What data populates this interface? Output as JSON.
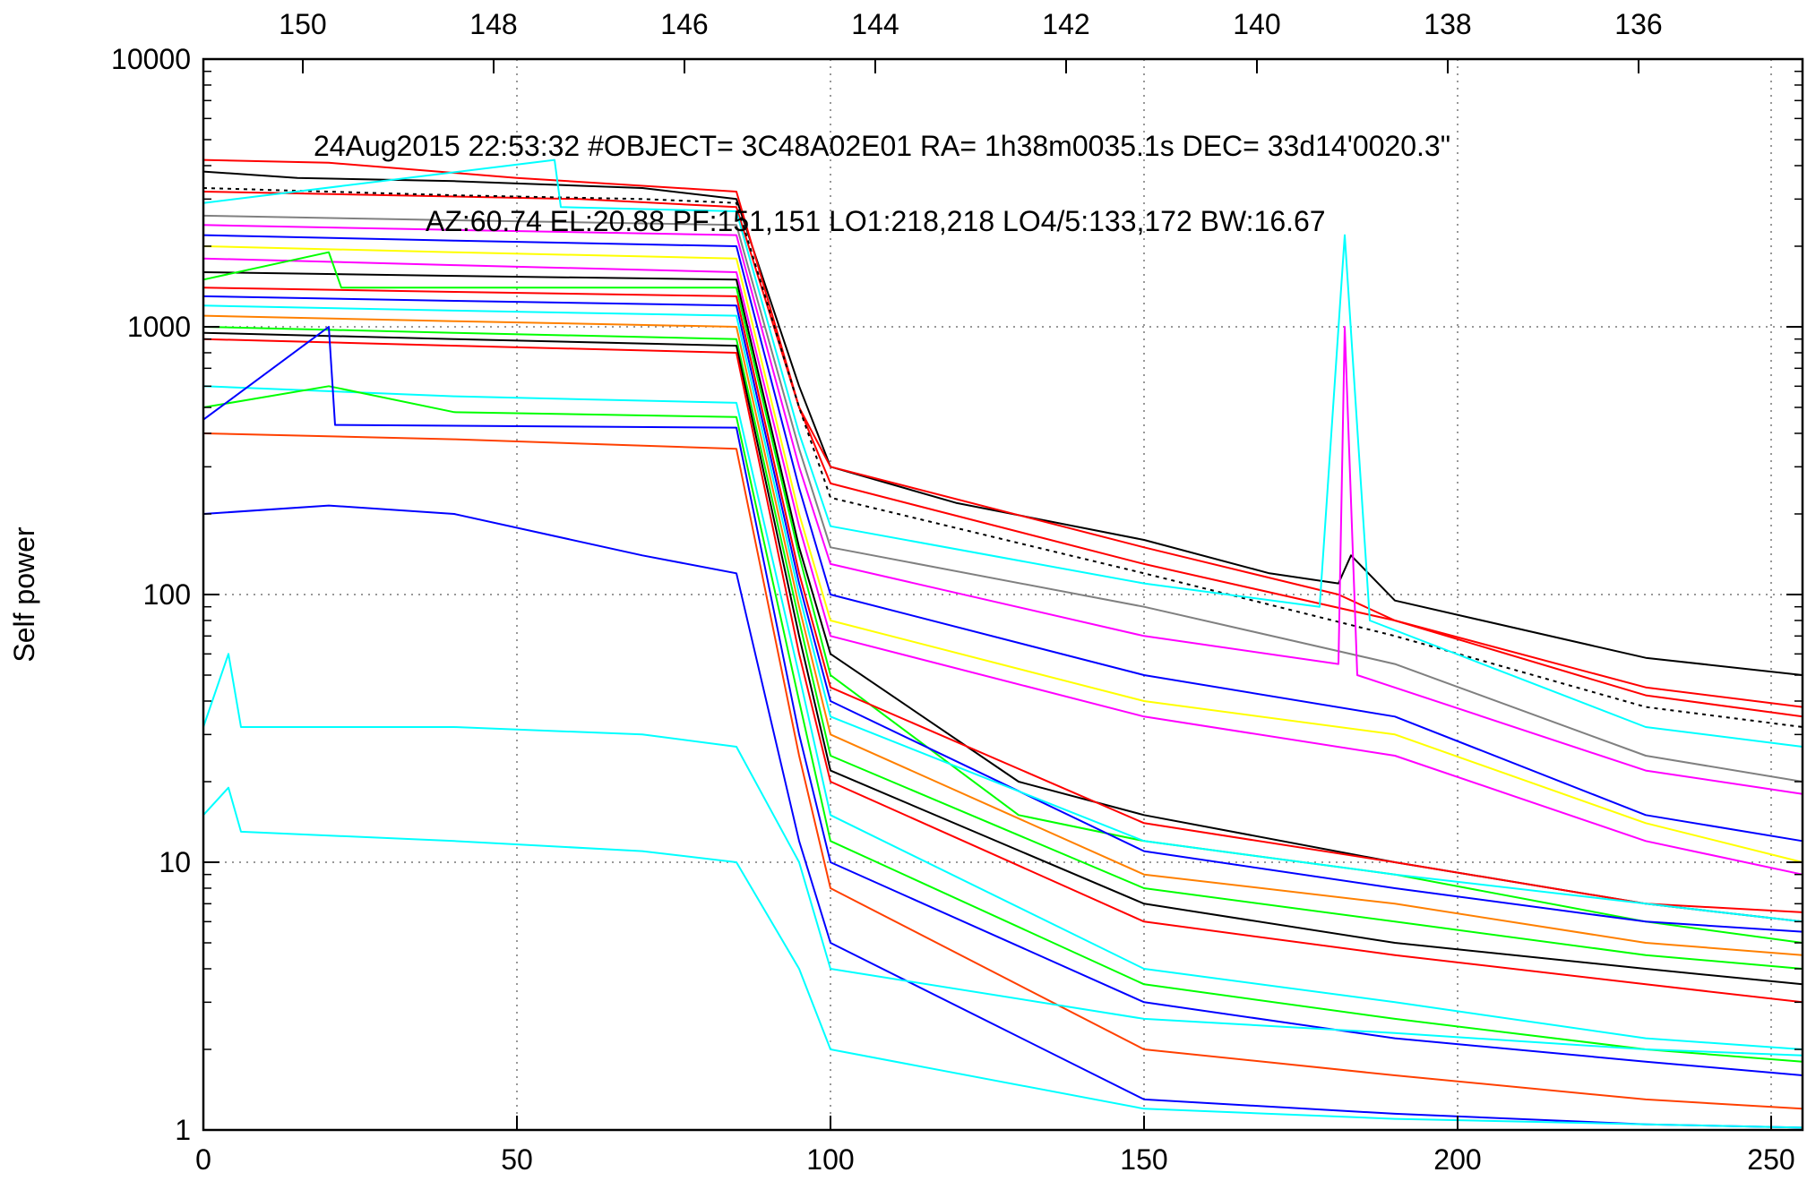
{
  "chart_data": {
    "type": "line",
    "header_line1": "24Aug2015 22:53:32  #OBJECT= 3C48A02E01 RA=   1h38m0035.1s DEC=  33d14'0020.3\"",
    "header_line2": "AZ:60.74   EL:20.88   PF:151,151     LO1:218,218     LO4/5:133,172     BW:16.67",
    "ylabel": "Self power",
    "xlabel": "",
    "xlim": [
      0,
      255
    ],
    "ylim": [
      1,
      10000
    ],
    "yscale": "log",
    "grid": true,
    "legend": "none",
    "x_ticks": [
      "0",
      "50",
      "100",
      "150",
      "200",
      "250"
    ],
    "y_ticks": [
      "1",
      "10",
      "100",
      "1000",
      "10000"
    ],
    "top_ticks": [
      "150",
      "148",
      "146",
      "144",
      "142",
      "140",
      "138",
      "136"
    ],
    "series": [
      {
        "color": "#000000",
        "points": [
          [
            0,
            3800
          ],
          [
            15,
            3600
          ],
          [
            40,
            3500
          ],
          [
            70,
            3300
          ],
          [
            85,
            3000
          ],
          [
            95,
            600
          ],
          [
            100,
            300
          ],
          [
            120,
            220
          ],
          [
            150,
            160
          ],
          [
            170,
            120
          ],
          [
            181,
            110
          ],
          [
            183,
            140
          ],
          [
            190,
            95
          ],
          [
            230,
            58
          ],
          [
            255,
            50
          ]
        ]
      },
      {
        "color": "#ff0000",
        "points": [
          [
            0,
            4200
          ],
          [
            20,
            4100
          ],
          [
            50,
            3600
          ],
          [
            85,
            3200
          ],
          [
            95,
            500
          ],
          [
            100,
            300
          ],
          [
            150,
            150
          ],
          [
            181,
            100
          ],
          [
            190,
            80
          ],
          [
            230,
            45
          ],
          [
            255,
            38
          ]
        ]
      },
      {
        "color": "#ff0000",
        "points": [
          [
            0,
            3200
          ],
          [
            30,
            3100
          ],
          [
            60,
            3000
          ],
          [
            85,
            2800
          ],
          [
            95,
            500
          ],
          [
            100,
            260
          ],
          [
            150,
            130
          ],
          [
            190,
            80
          ],
          [
            230,
            42
          ],
          [
            255,
            35
          ]
        ]
      },
      {
        "color": "#000000",
        "dash": "4,5",
        "points": [
          [
            0,
            3300
          ],
          [
            40,
            3100
          ],
          [
            70,
            3000
          ],
          [
            85,
            2900
          ],
          [
            95,
            500
          ],
          [
            100,
            230
          ],
          [
            150,
            120
          ],
          [
            190,
            70
          ],
          [
            230,
            38
          ],
          [
            255,
            32
          ]
        ]
      },
      {
        "color": "#00ffff",
        "points": [
          [
            0,
            2900
          ],
          [
            56,
            4200
          ],
          [
            57,
            2800
          ],
          [
            85,
            2700
          ],
          [
            95,
            400
          ],
          [
            100,
            180
          ],
          [
            150,
            110
          ],
          [
            178,
            90
          ],
          [
            182,
            2200
          ],
          [
            186,
            80
          ],
          [
            230,
            32
          ],
          [
            255,
            27
          ]
        ]
      },
      {
        "color": "#808080",
        "points": [
          [
            0,
            2600
          ],
          [
            40,
            2500
          ],
          [
            85,
            2400
          ],
          [
            95,
            350
          ],
          [
            100,
            150
          ],
          [
            150,
            90
          ],
          [
            190,
            55
          ],
          [
            230,
            25
          ],
          [
            255,
            20
          ]
        ]
      },
      {
        "color": "#ff00ff",
        "points": [
          [
            0,
            2400
          ],
          [
            40,
            2300
          ],
          [
            85,
            2200
          ],
          [
            95,
            300
          ],
          [
            100,
            130
          ],
          [
            150,
            70
          ],
          [
            181,
            55
          ],
          [
            182,
            1000
          ],
          [
            184,
            50
          ],
          [
            230,
            22
          ],
          [
            255,
            18
          ]
        ]
      },
      {
        "color": "#0000ff",
        "points": [
          [
            0,
            2200
          ],
          [
            40,
            2100
          ],
          [
            85,
            2000
          ],
          [
            95,
            250
          ],
          [
            100,
            100
          ],
          [
            150,
            50
          ],
          [
            190,
            35
          ],
          [
            230,
            15
          ],
          [
            255,
            12
          ]
        ]
      },
      {
        "color": "#ffff00",
        "points": [
          [
            0,
            2000
          ],
          [
            40,
            1900
          ],
          [
            85,
            1800
          ],
          [
            95,
            200
          ],
          [
            100,
            80
          ],
          [
            150,
            40
          ],
          [
            190,
            30
          ],
          [
            230,
            14
          ],
          [
            255,
            10
          ]
        ]
      },
      {
        "color": "#ff00ff",
        "points": [
          [
            0,
            1800
          ],
          [
            40,
            1700
          ],
          [
            85,
            1600
          ],
          [
            95,
            180
          ],
          [
            100,
            70
          ],
          [
            150,
            35
          ],
          [
            190,
            25
          ],
          [
            230,
            12
          ],
          [
            255,
            9
          ]
        ]
      },
      {
        "color": "#000000",
        "points": [
          [
            0,
            1600
          ],
          [
            40,
            1550
          ],
          [
            85,
            1500
          ],
          [
            95,
            150
          ],
          [
            100,
            60
          ],
          [
            130,
            20
          ],
          [
            150,
            15
          ],
          [
            190,
            10
          ],
          [
            230,
            7
          ],
          [
            255,
            6
          ]
        ]
      },
      {
        "color": "#00ff00",
        "points": [
          [
            0,
            1500
          ],
          [
            20,
            1900
          ],
          [
            22,
            1400
          ],
          [
            85,
            1400
          ],
          [
            95,
            140
          ],
          [
            100,
            50
          ],
          [
            130,
            15
          ],
          [
            150,
            12
          ],
          [
            190,
            9
          ],
          [
            230,
            6
          ],
          [
            255,
            5
          ]
        ]
      },
      {
        "color": "#ff0000",
        "points": [
          [
            0,
            1400
          ],
          [
            40,
            1350
          ],
          [
            85,
            1300
          ],
          [
            95,
            120
          ],
          [
            100,
            45
          ],
          [
            150,
            14
          ],
          [
            190,
            10
          ],
          [
            230,
            7
          ],
          [
            255,
            6.5
          ]
        ]
      },
      {
        "color": "#0000ff",
        "points": [
          [
            0,
            1300
          ],
          [
            40,
            1250
          ],
          [
            85,
            1200
          ],
          [
            95,
            110
          ],
          [
            100,
            40
          ],
          [
            150,
            11
          ],
          [
            190,
            8
          ],
          [
            230,
            6
          ],
          [
            255,
            5.5
          ]
        ]
      },
      {
        "color": "#00ffff",
        "points": [
          [
            0,
            1200
          ],
          [
            40,
            1150
          ],
          [
            85,
            1100
          ],
          [
            95,
            100
          ],
          [
            100,
            35
          ],
          [
            150,
            12
          ],
          [
            190,
            9
          ],
          [
            230,
            7
          ],
          [
            255,
            6
          ]
        ]
      },
      {
        "color": "#ff8000",
        "points": [
          [
            0,
            1100
          ],
          [
            40,
            1050
          ],
          [
            85,
            1000
          ],
          [
            95,
            90
          ],
          [
            100,
            30
          ],
          [
            150,
            9
          ],
          [
            190,
            7
          ],
          [
            230,
            5
          ],
          [
            255,
            4.5
          ]
        ]
      },
      {
        "color": "#00ff00",
        "points": [
          [
            0,
            1000
          ],
          [
            40,
            950
          ],
          [
            85,
            900
          ],
          [
            95,
            80
          ],
          [
            100,
            25
          ],
          [
            150,
            8
          ],
          [
            190,
            6
          ],
          [
            230,
            4.5
          ],
          [
            255,
            4
          ]
        ]
      },
      {
        "color": "#000000",
        "points": [
          [
            0,
            950
          ],
          [
            40,
            900
          ],
          [
            85,
            850
          ],
          [
            95,
            70
          ],
          [
            100,
            22
          ],
          [
            150,
            7
          ],
          [
            190,
            5
          ],
          [
            230,
            4
          ],
          [
            255,
            3.5
          ]
        ]
      },
      {
        "color": "#ff0000",
        "points": [
          [
            0,
            900
          ],
          [
            40,
            850
          ],
          [
            85,
            800
          ],
          [
            95,
            60
          ],
          [
            100,
            20
          ],
          [
            150,
            6
          ],
          [
            190,
            4.5
          ],
          [
            230,
            3.5
          ],
          [
            255,
            3
          ]
        ]
      },
      {
        "color": "#00ffff",
        "points": [
          [
            0,
            600
          ],
          [
            40,
            550
          ],
          [
            85,
            520
          ],
          [
            95,
            50
          ],
          [
            100,
            15
          ],
          [
            150,
            4
          ],
          [
            190,
            3
          ],
          [
            230,
            2.2
          ],
          [
            255,
            2
          ]
        ]
      },
      {
        "color": "#00ff00",
        "points": [
          [
            0,
            500
          ],
          [
            20,
            600
          ],
          [
            40,
            480
          ],
          [
            85,
            460
          ],
          [
            95,
            40
          ],
          [
            100,
            12
          ],
          [
            150,
            3.5
          ],
          [
            190,
            2.6
          ],
          [
            230,
            2
          ],
          [
            255,
            1.8
          ]
        ]
      },
      {
        "color": "#0000ff",
        "points": [
          [
            0,
            450
          ],
          [
            20,
            1000
          ],
          [
            21,
            430
          ],
          [
            85,
            420
          ],
          [
            95,
            30
          ],
          [
            100,
            10
          ],
          [
            150,
            3
          ],
          [
            190,
            2.2
          ],
          [
            230,
            1.8
          ],
          [
            255,
            1.6
          ]
        ]
      },
      {
        "color": "#ff4000",
        "points": [
          [
            0,
            400
          ],
          [
            40,
            380
          ],
          [
            85,
            350
          ],
          [
            95,
            25
          ],
          [
            100,
            8
          ],
          [
            150,
            2
          ],
          [
            190,
            1.6
          ],
          [
            230,
            1.3
          ],
          [
            255,
            1.2
          ]
        ]
      },
      {
        "color": "#0000ff",
        "points": [
          [
            0,
            200
          ],
          [
            20,
            215
          ],
          [
            40,
            200
          ],
          [
            70,
            140
          ],
          [
            85,
            120
          ],
          [
            95,
            12
          ],
          [
            100,
            5
          ],
          [
            150,
            1.3
          ],
          [
            190,
            1.15
          ],
          [
            230,
            1.05
          ],
          [
            255,
            1.02
          ]
        ]
      },
      {
        "color": "#00ffff",
        "points": [
          [
            0,
            32
          ],
          [
            4,
            60
          ],
          [
            6,
            32
          ],
          [
            40,
            32
          ],
          [
            70,
            30
          ],
          [
            85,
            27
          ],
          [
            95,
            10
          ],
          [
            100,
            4
          ],
          [
            150,
            2.6
          ],
          [
            190,
            2.3
          ],
          [
            230,
            2
          ],
          [
            255,
            1.9
          ]
        ]
      },
      {
        "color": "#00ffff",
        "points": [
          [
            0,
            15
          ],
          [
            4,
            19
          ],
          [
            6,
            13
          ],
          [
            40,
            12
          ],
          [
            70,
            11
          ],
          [
            85,
            10
          ],
          [
            95,
            4
          ],
          [
            100,
            2
          ],
          [
            150,
            1.2
          ],
          [
            190,
            1.1
          ],
          [
            230,
            1.05
          ],
          [
            255,
            1.02
          ]
        ]
      }
    ]
  }
}
